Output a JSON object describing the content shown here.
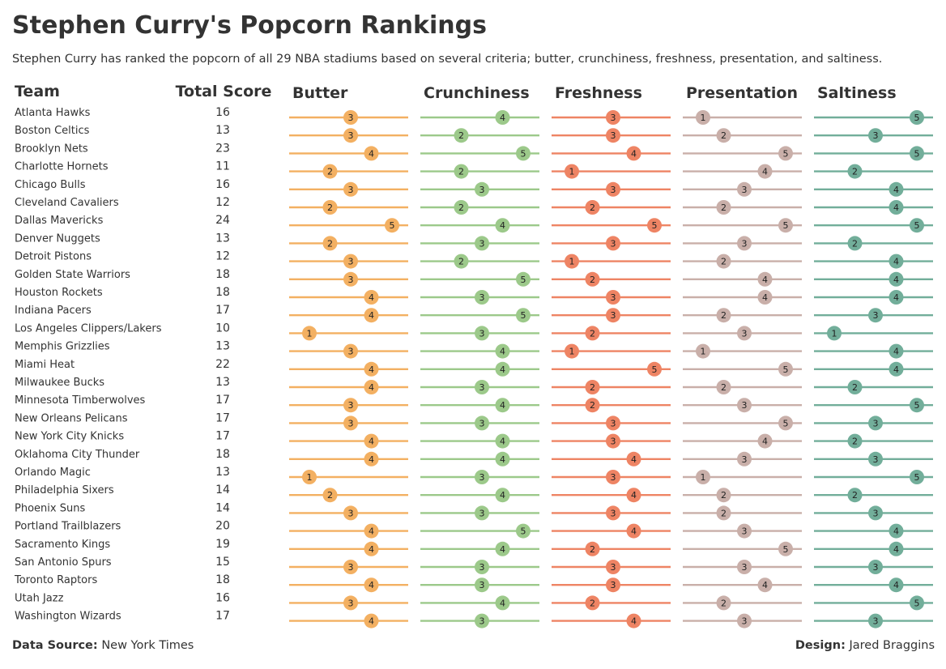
{
  "title": "Stephen Curry's Popcorn Rankings",
  "subtitle": "Stephen Curry has ranked the popcorn of all 29 NBA stadiums based on several criteria; butter, crunchiness, freshness, presentation, and saltiness.",
  "footer": {
    "source_label": "Data Source:",
    "source_value": "New York Times",
    "design_label": "Design:",
    "design_value": "Jared Braggins"
  },
  "chart_data": {
    "type": "dot-strip",
    "team_header": "Team",
    "total_header": "Total Score",
    "scale": [
      1,
      5
    ],
    "teams": [
      "Atlanta Hawks",
      "Boston Celtics",
      "Brooklyn Nets",
      "Charlotte Hornets",
      "Chicago Bulls",
      "Cleveland Cavaliers",
      "Dallas Mavericks",
      "Denver Nuggets",
      "Detroit Pistons",
      "Golden State Warriors",
      "Houston Rockets",
      "Indiana Pacers",
      "Los Angeles Clippers/Lakers",
      "Memphis Grizzlies",
      "Miami Heat",
      "Milwaukee Bucks",
      "Minnesota Timberwolves",
      "New Orleans Pelicans",
      "New York City Knicks",
      "Oklahoma City Thunder",
      "Orlando Magic",
      "Philadelphia Sixers",
      "Phoenix Suns",
      "Portland Trailblazers",
      "Sacramento Kings",
      "San Antonio Spurs",
      "Toronto Raptors",
      "Utah Jazz",
      "Washington Wizards"
    ],
    "total_score": [
      16,
      13,
      23,
      11,
      16,
      12,
      24,
      13,
      12,
      18,
      18,
      17,
      10,
      13,
      22,
      13,
      17,
      17,
      17,
      18,
      13,
      14,
      14,
      20,
      19,
      15,
      18,
      16,
      17
    ],
    "series": [
      {
        "name": "Butter",
        "color": "#f3b062",
        "values": [
          3,
          3,
          4,
          2,
          3,
          2,
          5,
          2,
          3,
          3,
          4,
          4,
          1,
          3,
          4,
          4,
          3,
          3,
          4,
          4,
          1,
          2,
          3,
          4,
          4,
          3,
          4,
          3,
          4
        ]
      },
      {
        "name": "Crunchiness",
        "color": "#9cc98a",
        "values": [
          4,
          2,
          5,
          2,
          3,
          2,
          4,
          3,
          2,
          5,
          3,
          5,
          3,
          4,
          4,
          3,
          4,
          3,
          4,
          4,
          3,
          4,
          3,
          5,
          4,
          3,
          3,
          4,
          3
        ]
      },
      {
        "name": "Freshness",
        "color": "#ee8464",
        "values": [
          3,
          3,
          4,
          1,
          3,
          2,
          5,
          3,
          1,
          2,
          3,
          3,
          2,
          1,
          5,
          2,
          2,
          3,
          3,
          4,
          3,
          4,
          3,
          4,
          2,
          3,
          3,
          2,
          4
        ]
      },
      {
        "name": "Presentation",
        "color": "#c9afa9",
        "values": [
          1,
          2,
          5,
          4,
          3,
          2,
          5,
          3,
          2,
          4,
          4,
          2,
          3,
          1,
          5,
          2,
          3,
          5,
          4,
          3,
          1,
          2,
          2,
          3,
          5,
          3,
          4,
          2,
          3
        ]
      },
      {
        "name": "Saltiness",
        "color": "#72ae9a",
        "values": [
          5,
          3,
          5,
          2,
          4,
          4,
          5,
          2,
          4,
          4,
          4,
          3,
          1,
          4,
          4,
          2,
          5,
          3,
          2,
          3,
          5,
          2,
          3,
          4,
          4,
          3,
          4,
          5,
          3
        ]
      }
    ]
  }
}
